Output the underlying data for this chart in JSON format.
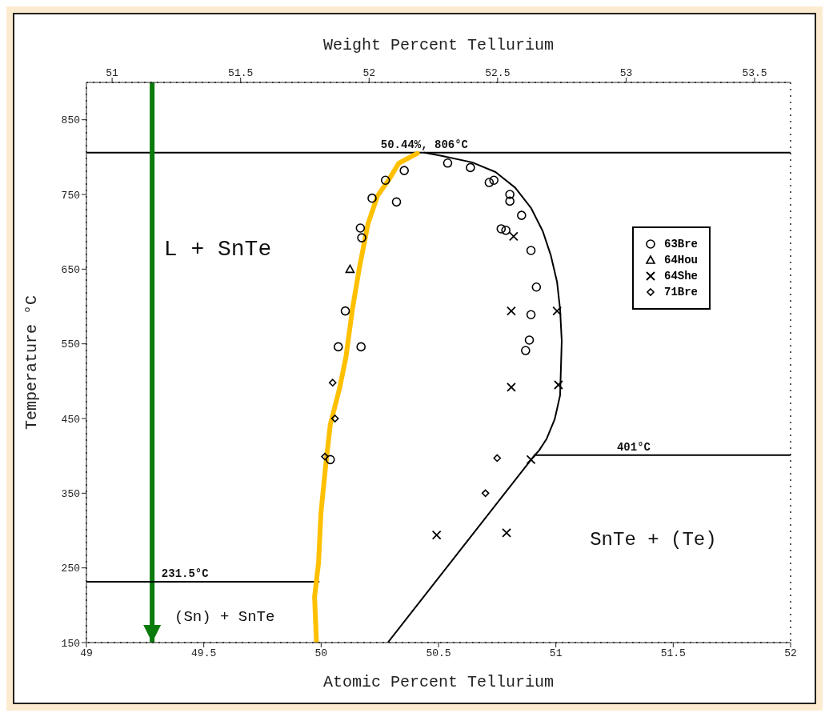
{
  "chart_data": {
    "type": "scatter",
    "xlabel": "Atomic Percent Tellurium",
    "x2label": "Weight Percent Tellurium",
    "ylabel": "Temperature °C",
    "xlim": [
      49,
      52
    ],
    "xticks": [
      49,
      49.5,
      50,
      50.5,
      51,
      51.5,
      52
    ],
    "x2lim": [
      50.9,
      53.64
    ],
    "x2ticks": [
      51,
      51.5,
      52,
      52.5,
      53,
      53.5
    ],
    "ylim": [
      150,
      900
    ],
    "yticks": [
      150,
      250,
      350,
      450,
      550,
      650,
      750,
      850
    ],
    "grid": false,
    "legend": "top right",
    "line_style": "solid",
    "ref_lines": [
      {
        "axis": "y",
        "value": 806,
        "color": "#000000"
      },
      {
        "axis": "x",
        "value": 49.28,
        "color": "#0a7a0a"
      }
    ],
    "annotations": [
      {
        "text": "50.44%, 806°C",
        "x": 50.44,
        "y": 806
      },
      {
        "text": "401°C",
        "x": 51.26,
        "y": 401
      },
      {
        "text": "231.5°C",
        "x": 49.32,
        "y": 231.5
      },
      "L + SnTe",
      "SnTe + (Te)",
      "(Sn) + SnTe"
    ],
    "series": [
      {
        "type": "line",
        "color": "#000000",
        "marker": "none",
        "x": [
          50.44,
          50.509,
          50.643,
          50.743,
          50.827,
          50.894,
          50.944,
          50.978,
          51.005,
          51.018,
          51.025,
          51.021,
          51.018,
          50.995,
          50.961,
          50.928,
          50.91
        ],
        "values": [
          806,
          802,
          793,
          780,
          759,
          732,
          701,
          669,
          633,
          596,
          554,
          512,
          481,
          449,
          423,
          407,
          401
        ]
      },
      {
        "type": "line",
        "color": "#000000",
        "marker": "none",
        "x": [
          50.91,
          50.284
        ],
        "values": [
          401,
          150
        ]
      },
      {
        "type": "line",
        "color": "#000000",
        "marker": "none",
        "x": [
          50.91,
          52
        ],
        "values": [
          401,
          401
        ]
      },
      {
        "type": "line",
        "color": "#000000",
        "marker": "none",
        "x": [
          49,
          49.99
        ],
        "values": [
          231.5,
          231.5
        ]
      },
      {
        "type": "line",
        "color": "#ffc000",
        "marker": "none",
        "x": [
          50.41,
          50.331,
          50.291,
          50.24,
          50.2,
          50.163,
          50.133,
          50.106,
          50.079,
          50.039,
          50.019,
          49.999,
          49.989,
          49.972,
          49.98
        ],
        "values": [
          805,
          792,
          771,
          748,
          711,
          652,
          596,
          533,
          491,
          442,
          386,
          323,
          257,
          211,
          150
        ]
      },
      {
        "name": "63Bre",
        "color": "#000000",
        "marker": "circle",
        "x": [
          50.539,
          50.636,
          50.716,
          50.736,
          50.804,
          50.804,
          50.854,
          50.767,
          50.787,
          50.894,
          50.917,
          50.894,
          50.887,
          50.871,
          50.354,
          50.274,
          50.217,
          50.321,
          50.167,
          50.173,
          50.103,
          50.17,
          50.073,
          50.039
        ],
        "values": [
          792,
          786,
          766,
          769,
          750,
          741,
          722,
          704,
          702,
          675,
          626,
          589,
          555,
          541,
          782,
          769,
          745,
          740,
          705,
          692,
          594,
          546,
          546,
          395
        ]
      },
      {
        "name": "64Hou",
        "color": "#000000",
        "marker": "triangle",
        "x": [
          50.123
        ],
        "values": [
          650
        ]
      },
      {
        "name": "64She",
        "color": "#000000",
        "marker": "cross",
        "x": [
          50.82,
          50.81,
          51.005,
          50.81,
          51.011,
          50.894,
          50.492,
          50.79
        ],
        "values": [
          694,
          594,
          594,
          492,
          495,
          395,
          294,
          297
        ]
      },
      {
        "name": "71Bre",
        "color": "#000000",
        "marker": "diamond",
        "x": [
          50.049,
          50.059,
          50.016,
          50.75,
          50.7
        ],
        "values": [
          498,
          450,
          399,
          397,
          350
        ]
      }
    ]
  }
}
